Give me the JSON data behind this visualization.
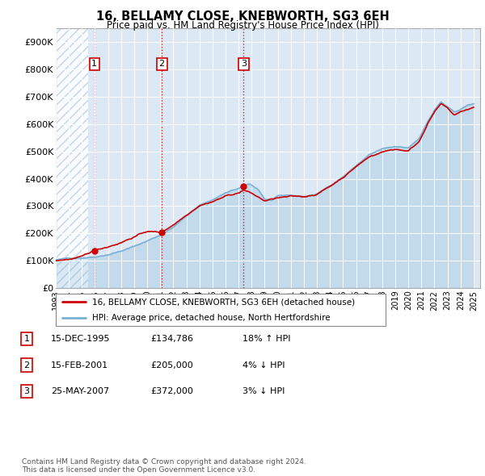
{
  "title": "16, BELLAMY CLOSE, KNEBWORTH, SG3 6EH",
  "subtitle": "Price paid vs. HM Land Registry's House Price Index (HPI)",
  "background_color": "#ffffff",
  "plot_bg_color": "#dce9f5",
  "hatch_color": "#b8cfe8",
  "grid_color": "#ffffff",
  "sale_date_nums": [
    1995.96,
    2001.12,
    2007.38
  ],
  "sale_prices": [
    134786,
    205000,
    372000
  ],
  "sale_labels": [
    "1",
    "2",
    "3"
  ],
  "legend_line1": "16, BELLAMY CLOSE, KNEBWORTH, SG3 6EH (detached house)",
  "legend_line2": "HPI: Average price, detached house, North Hertfordshire",
  "table_rows": [
    {
      "num": "1",
      "date": "15-DEC-1995",
      "price": "£134,786",
      "change": "18% ↑ HPI"
    },
    {
      "num": "2",
      "date": "15-FEB-2001",
      "price": "£205,000",
      "change": "4% ↓ HPI"
    },
    {
      "num": "3",
      "date": "25-MAY-2007",
      "price": "£372,000",
      "change": "3% ↓ HPI"
    }
  ],
  "footer": "Contains HM Land Registry data © Crown copyright and database right 2024.\nThis data is licensed under the Open Government Licence v3.0.",
  "hpi_color": "#7ab0d4",
  "price_color": "#cc0000",
  "marker_color": "#cc0000",
  "ylim": [
    0,
    950000
  ],
  "yticks": [
    0,
    100000,
    200000,
    300000,
    400000,
    500000,
    600000,
    700000,
    800000,
    900000
  ],
  "xmin": 1993.0,
  "xmax": 2025.5
}
